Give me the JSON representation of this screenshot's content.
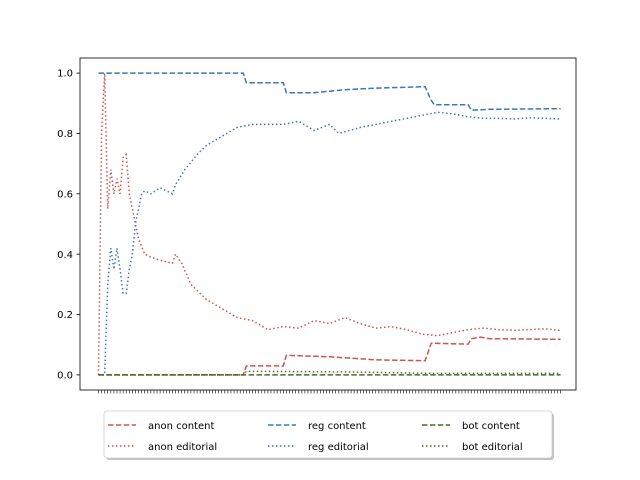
{
  "chart_data": {
    "type": "line",
    "title": "",
    "xlabel": "",
    "ylabel": "",
    "x": [
      0,
      1,
      2,
      3,
      4,
      5,
      6,
      7,
      8,
      9,
      10,
      11,
      12,
      13,
      14,
      15,
      16,
      17,
      18,
      19,
      20,
      21,
      22,
      23,
      24,
      25,
      26,
      27,
      28,
      29,
      30,
      31,
      32,
      33,
      34,
      35,
      36,
      37,
      38,
      39,
      40,
      41,
      42,
      43,
      44,
      45,
      46,
      47,
      48,
      49,
      50,
      51,
      52,
      53,
      54,
      55,
      56,
      57,
      58,
      59,
      60,
      61,
      62,
      63,
      64,
      65,
      66,
      67,
      68,
      69,
      70,
      71,
      72,
      73,
      74,
      75,
      76,
      77,
      78,
      79,
      80,
      81,
      82,
      83,
      84,
      85,
      86,
      87,
      88,
      89,
      90,
      91,
      92,
      93,
      94,
      95,
      96,
      97,
      98,
      99,
      100,
      101,
      102,
      103,
      104,
      105,
      106,
      107,
      108,
      109,
      110,
      111,
      112,
      113,
      114,
      115,
      116,
      117,
      118,
      119,
      120,
      121,
      122,
      123,
      124,
      125,
      126,
      127,
      128,
      129,
      130,
      131,
      132,
      133,
      134,
      135,
      136,
      137,
      138,
      139,
      140,
      141,
      142,
      143,
      144,
      145,
      146,
      147,
      148,
      149,
      150
    ],
    "xlim": [
      -6,
      155
    ],
    "ylim": [
      -0.05,
      1.05
    ],
    "yticks": [
      0.0,
      0.2,
      0.4,
      0.6,
      0.8,
      1.0
    ],
    "ytick_labels": [
      "0.0",
      "0.2",
      "0.4",
      "0.6",
      "0.8",
      "1.0"
    ],
    "x_tick_labels_shown": false,
    "grid": false,
    "legend_position": "bottom-center",
    "series": [
      {
        "name": "anon content",
        "color": "#d0544d",
        "dash": "dashed",
        "points": [
          [
            0,
            0.0
          ],
          [
            47,
            0.0
          ],
          [
            48,
            0.03
          ],
          [
            60,
            0.03
          ],
          [
            61,
            0.065
          ],
          [
            75,
            0.06
          ],
          [
            90,
            0.05
          ],
          [
            106,
            0.047
          ],
          [
            107,
            0.075
          ],
          [
            108,
            0.105
          ],
          [
            120,
            0.102
          ],
          [
            121,
            0.12
          ],
          [
            124,
            0.125
          ],
          [
            127,
            0.12
          ],
          [
            150,
            0.118
          ]
        ]
      },
      {
        "name": "anon editorial",
        "color": "#d0544d",
        "dash": "dotted",
        "points": [
          [
            0,
            0.0
          ],
          [
            1,
            0.8
          ],
          [
            2,
            1.0
          ],
          [
            3,
            0.55
          ],
          [
            4,
            0.68
          ],
          [
            5,
            0.6
          ],
          [
            6,
            0.65
          ],
          [
            7,
            0.6
          ],
          [
            8,
            0.72
          ],
          [
            9,
            0.73
          ],
          [
            10,
            0.6
          ],
          [
            11,
            0.55
          ],
          [
            12,
            0.5
          ],
          [
            13,
            0.45
          ],
          [
            15,
            0.4
          ],
          [
            17,
            0.39
          ],
          [
            20,
            0.38
          ],
          [
            24,
            0.37
          ],
          [
            25,
            0.4
          ],
          [
            27,
            0.37
          ],
          [
            30,
            0.3
          ],
          [
            35,
            0.25
          ],
          [
            40,
            0.22
          ],
          [
            45,
            0.19
          ],
          [
            50,
            0.18
          ],
          [
            55,
            0.15
          ],
          [
            60,
            0.16
          ],
          [
            65,
            0.155
          ],
          [
            70,
            0.18
          ],
          [
            75,
            0.17
          ],
          [
            80,
            0.19
          ],
          [
            85,
            0.17
          ],
          [
            90,
            0.155
          ],
          [
            95,
            0.16
          ],
          [
            100,
            0.15
          ],
          [
            105,
            0.135
          ],
          [
            110,
            0.13
          ],
          [
            115,
            0.14
          ],
          [
            120,
            0.15
          ],
          [
            125,
            0.155
          ],
          [
            130,
            0.15
          ],
          [
            135,
            0.148
          ],
          [
            140,
            0.15
          ],
          [
            145,
            0.153
          ],
          [
            150,
            0.147
          ]
        ]
      },
      {
        "name": "reg content",
        "color": "#3a7ab3",
        "dash": "dashed",
        "points": [
          [
            0,
            1.0
          ],
          [
            47,
            1.0
          ],
          [
            48,
            0.968
          ],
          [
            60,
            0.968
          ],
          [
            61,
            0.935
          ],
          [
            70,
            0.935
          ],
          [
            80,
            0.945
          ],
          [
            90,
            0.95
          ],
          [
            106,
            0.955
          ],
          [
            108,
            0.91
          ],
          [
            109,
            0.895
          ],
          [
            120,
            0.895
          ],
          [
            121,
            0.877
          ],
          [
            127,
            0.88
          ],
          [
            150,
            0.882
          ]
        ]
      },
      {
        "name": "reg editorial",
        "color": "#3a7ab3",
        "dash": "dotted",
        "points": [
          [
            0,
            0.0
          ],
          [
            1,
            0.0
          ],
          [
            2,
            0.0
          ],
          [
            3,
            0.3
          ],
          [
            4,
            0.42
          ],
          [
            5,
            0.35
          ],
          [
            6,
            0.42
          ],
          [
            7,
            0.35
          ],
          [
            8,
            0.27
          ],
          [
            9,
            0.27
          ],
          [
            10,
            0.35
          ],
          [
            11,
            0.4
          ],
          [
            12,
            0.5
          ],
          [
            13,
            0.55
          ],
          [
            14,
            0.6
          ],
          [
            15,
            0.61
          ],
          [
            17,
            0.6
          ],
          [
            20,
            0.62
          ],
          [
            24,
            0.6
          ],
          [
            25,
            0.63
          ],
          [
            28,
            0.68
          ],
          [
            32,
            0.73
          ],
          [
            35,
            0.76
          ],
          [
            40,
            0.79
          ],
          [
            45,
            0.82
          ],
          [
            50,
            0.83
          ],
          [
            55,
            0.83
          ],
          [
            60,
            0.83
          ],
          [
            65,
            0.84
          ],
          [
            70,
            0.81
          ],
          [
            75,
            0.83
          ],
          [
            78,
            0.8
          ],
          [
            85,
            0.82
          ],
          [
            90,
            0.83
          ],
          [
            95,
            0.84
          ],
          [
            100,
            0.85
          ],
          [
            105,
            0.86
          ],
          [
            110,
            0.87
          ],
          [
            115,
            0.865
          ],
          [
            120,
            0.855
          ],
          [
            125,
            0.85
          ],
          [
            130,
            0.85
          ],
          [
            135,
            0.848
          ],
          [
            140,
            0.852
          ],
          [
            145,
            0.85
          ],
          [
            150,
            0.848
          ]
        ]
      },
      {
        "name": "bot content",
        "color": "#4e6a2d",
        "dash": "dashed",
        "points": [
          [
            0,
            0.0
          ],
          [
            150,
            0.0
          ]
        ]
      },
      {
        "name": "bot editorial",
        "color": "#4e6a2d",
        "dash": "dotted",
        "points": [
          [
            0,
            0.0
          ],
          [
            47,
            0.0
          ],
          [
            48,
            0.012
          ],
          [
            80,
            0.01
          ],
          [
            110,
            0.005
          ],
          [
            150,
            0.005
          ]
        ]
      }
    ]
  }
}
